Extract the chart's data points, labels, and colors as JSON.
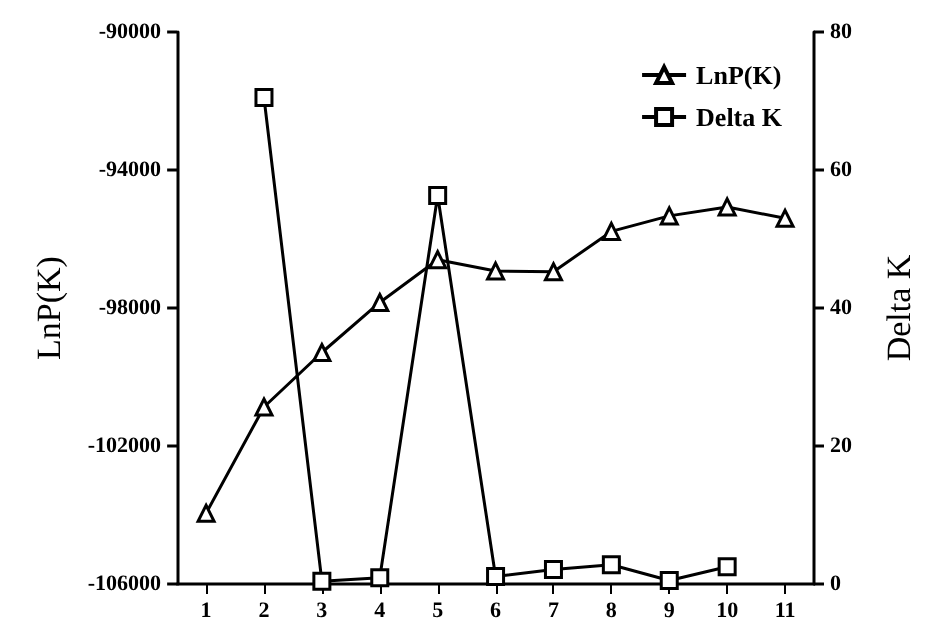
{
  "chart_data": {
    "type": "line",
    "ylabel": "LnP(K)",
    "y2label": "Delta K",
    "categories": [
      "1",
      "2",
      "3",
      "4",
      "5",
      "6",
      "7",
      "8",
      "9",
      "10",
      "11"
    ],
    "ylim": [
      -106000,
      -90000
    ],
    "yticks": [
      -106000,
      -102000,
      -98000,
      -94000,
      -90000
    ],
    "y2lim": [
      0,
      80
    ],
    "y2ticks": [
      0,
      20,
      40,
      60,
      80
    ],
    "series": [
      {
        "name": "LnP(K)",
        "color": "#000000",
        "marker": "triangle",
        "values": [
          -103950,
          -100870,
          -99290,
          -97840,
          -96600,
          -96930,
          -96950,
          -95780,
          -95330,
          -95070,
          -95400
        ]
      },
      {
        "name": "Delta K",
        "color": "#000000",
        "marker": "square",
        "axis": "y2",
        "values": [
          null,
          70.5,
          0.4,
          0.9,
          56.3,
          1.1,
          2.1,
          2.8,
          0.5,
          2.5,
          null
        ]
      }
    ],
    "legend": "top right",
    "grid": false
  }
}
